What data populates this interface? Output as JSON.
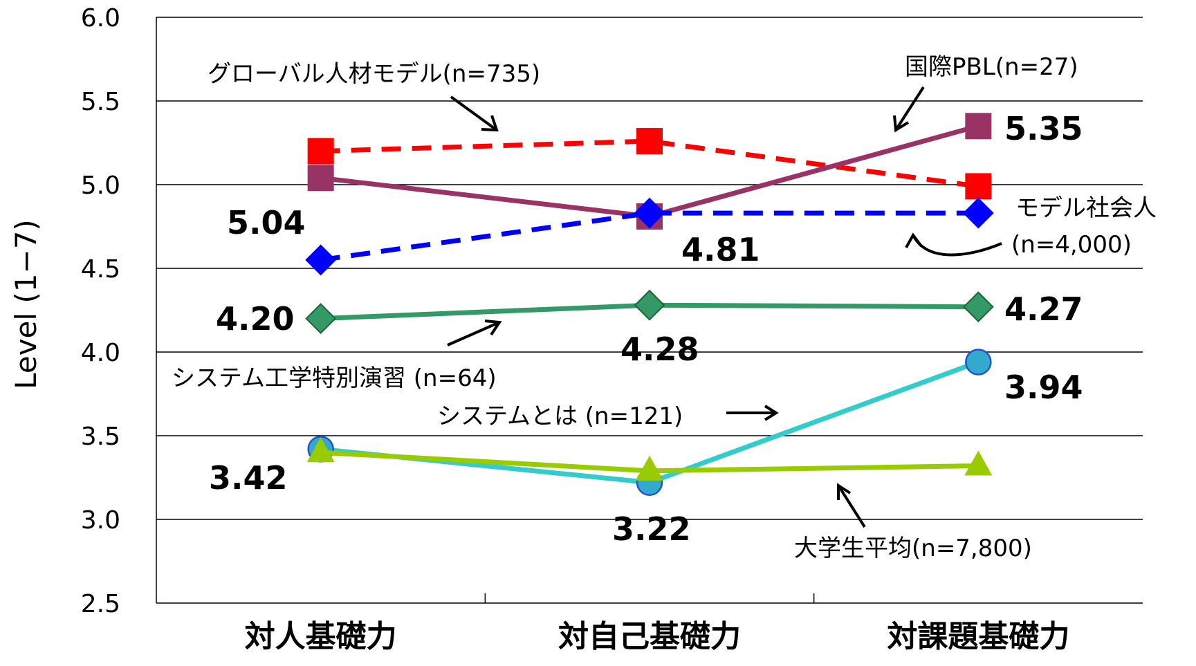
{
  "chart_data": {
    "type": "line",
    "categories": [
      "対人基礎力",
      "対自己基礎力",
      "対課題基礎力"
    ],
    "ylabel": "Level (1−7)",
    "ylim": [
      2.5,
      6.0
    ],
    "yticks": [
      "6.0",
      "5.5",
      "5.0",
      "4.5",
      "4.0",
      "3.5",
      "3.0",
      "2.5"
    ],
    "grid": true,
    "series": [
      {
        "name": "グローバル人材モデル(n=735)",
        "values": [
          5.2,
          5.26,
          4.99
        ],
        "color": "#ff0000",
        "marker": "square",
        "dash": true
      },
      {
        "name": "国際PBL(n=27)",
        "values": [
          5.04,
          4.81,
          5.35
        ],
        "color": "#993366",
        "marker": "square",
        "dash": false
      },
      {
        "name": "モデル社会人(n=4,000)",
        "values": [
          4.55,
          4.83,
          4.83
        ],
        "color": "#0000ff",
        "marker": "diamond",
        "dash": true
      },
      {
        "name": "システム工学特別演習 (n=64)",
        "values": [
          4.2,
          4.28,
          4.27
        ],
        "color": "#339966",
        "marker": "diamond",
        "dash": false
      },
      {
        "name": "システムとは (n=121)",
        "values": [
          3.42,
          3.22,
          3.94
        ],
        "color": "#33cccc",
        "marker": "circle",
        "dash": false
      },
      {
        "name": "大学生平均(n=7,800)",
        "values": [
          3.4,
          3.29,
          3.32
        ],
        "color": "#99cc00",
        "marker": "triangle",
        "dash": false
      }
    ],
    "data_labels": [
      "5.04",
      "4.81",
      "5.35",
      "4.20",
      "4.28",
      "4.27",
      "3.42",
      "3.22",
      "3.94"
    ],
    "annotations": {
      "global": "グローバル人材モデル(n=735)",
      "pbl": "国際PBL(n=27)",
      "model_line1": "モデル社会人",
      "model_line2": "(n=4,000)",
      "sysex": "システム工学特別演習 (n=64)",
      "systoha": "システムとは (n=121)",
      "univ": "大学生平均(n=7,800)"
    }
  }
}
